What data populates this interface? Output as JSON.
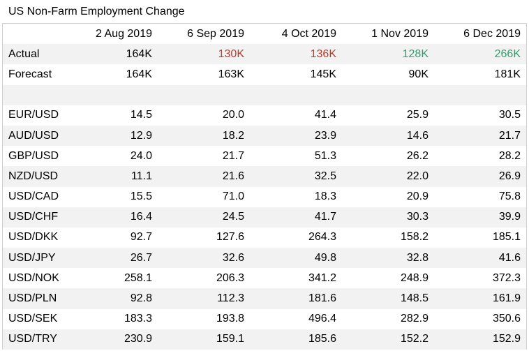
{
  "chart_data": {
    "type": "table",
    "title": "US Non-Farm Employment Change",
    "columns": [
      "",
      "2 Aug 2019",
      "6 Sep 2019",
      "4 Oct 2019",
      "1 Nov 2019",
      "6 Dec 2019"
    ],
    "rows": [
      {
        "label": "Actual",
        "values": [
          "164K",
          "130K",
          "136K",
          "128K",
          "266K"
        ],
        "colors": [
          "#000000",
          "#c0392b",
          "#c0392b",
          "#2e9e6e",
          "#2e9e6e"
        ]
      },
      {
        "label": "Forecast",
        "values": [
          "164K",
          "163K",
          "145K",
          "90K",
          "181K"
        ]
      },
      {
        "label": "",
        "values": [
          "",
          "",
          "",
          "",
          ""
        ]
      },
      {
        "label": "EUR/USD",
        "values": [
          "14.5",
          "20.0",
          "41.4",
          "25.9",
          "30.5"
        ]
      },
      {
        "label": "AUD/USD",
        "values": [
          "12.9",
          "18.2",
          "23.9",
          "14.6",
          "21.7"
        ]
      },
      {
        "label": "GBP/USD",
        "values": [
          "24.0",
          "21.7",
          "51.3",
          "26.2",
          "28.2"
        ]
      },
      {
        "label": "NZD/USD",
        "values": [
          "11.1",
          "21.6",
          "32.5",
          "22.0",
          "26.9"
        ]
      },
      {
        "label": "USD/CAD",
        "values": [
          "15.5",
          "71.0",
          "18.3",
          "20.9",
          "75.8"
        ]
      },
      {
        "label": "USD/CHF",
        "values": [
          "16.4",
          "24.5",
          "41.7",
          "30.3",
          "39.9"
        ]
      },
      {
        "label": "USD/DKK",
        "values": [
          "92.7",
          "127.6",
          "264.3",
          "158.2",
          "185.1"
        ]
      },
      {
        "label": "USD/JPY",
        "values": [
          "26.7",
          "32.6",
          "49.8",
          "32.8",
          "41.6"
        ]
      },
      {
        "label": "USD/NOK",
        "values": [
          "258.1",
          "206.3",
          "341.2",
          "248.9",
          "372.3"
        ]
      },
      {
        "label": "USD/PLN",
        "values": [
          "92.8",
          "112.3",
          "181.6",
          "148.5",
          "161.9"
        ]
      },
      {
        "label": "USD/SEK",
        "values": [
          "183.3",
          "193.8",
          "496.4",
          "282.9",
          "350.6"
        ]
      },
      {
        "label": "USD/TRY",
        "values": [
          "230.9",
          "159.1",
          "185.6",
          "152.2",
          "152.9"
        ]
      }
    ],
    "colors": {
      "shade": "#f2f2f2",
      "negative": "#c0392b",
      "positive": "#2e9e6e"
    }
  }
}
